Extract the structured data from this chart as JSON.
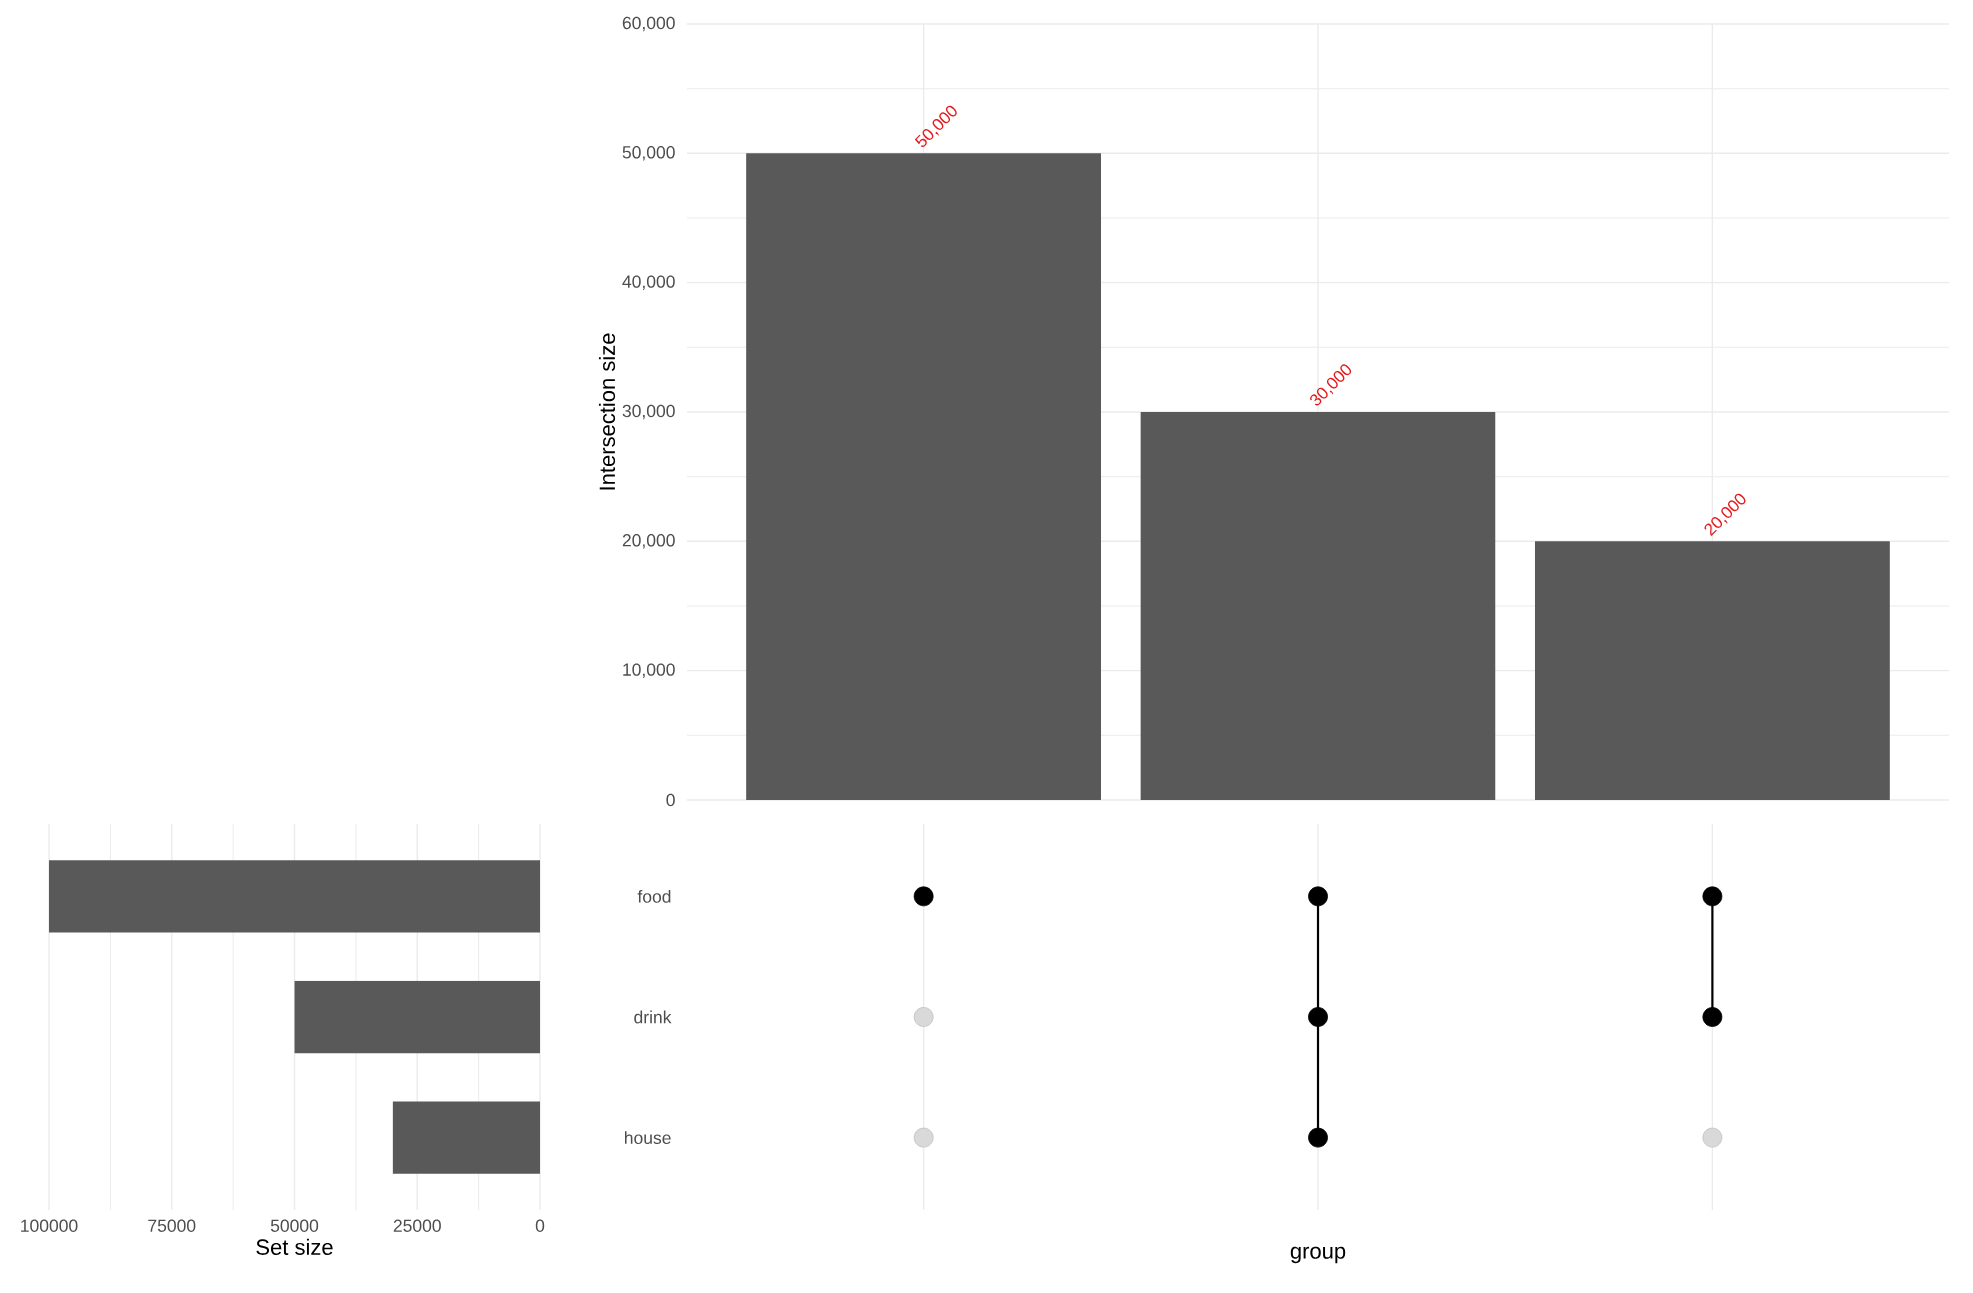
{
  "chart_data": [
    {
      "type": "bar",
      "categories": [
        null,
        null,
        null
      ],
      "values": [
        50000,
        30000,
        20000
      ],
      "color": "#595959",
      "ylabel": "Intersection size",
      "ylim": [
        0,
        60000
      ],
      "yticks": [
        0,
        {
          "value": 10000,
          "label": "10,000"
        },
        {
          "value": 20000,
          "label": "20,000"
        },
        {
          "value": 30000,
          "label": "30,000"
        },
        {
          "value": 40000,
          "label": "40,000"
        },
        {
          "value": 50000,
          "label": "50,000"
        },
        {
          "value": 60000,
          "label": "60,000"
        }
      ],
      "value_labels": [
        "50,000",
        "30,000",
        "20,000"
      ],
      "grid": true,
      "tick_labels": "y"
    },
    {
      "type": "bar",
      "orientation": "horizontal",
      "categories": [
        "food",
        "drink",
        "house"
      ],
      "values": [
        100000,
        50000,
        30000
      ],
      "color": "#595959",
      "xlabel": "Set size",
      "xlim": [
        100000,
        0
      ],
      "xticks": [
        100000,
        75000,
        50000,
        25000,
        0
      ],
      "grid": "x"
    },
    {
      "type": "other",
      "xlabel": "group"
    }
  ]
}
